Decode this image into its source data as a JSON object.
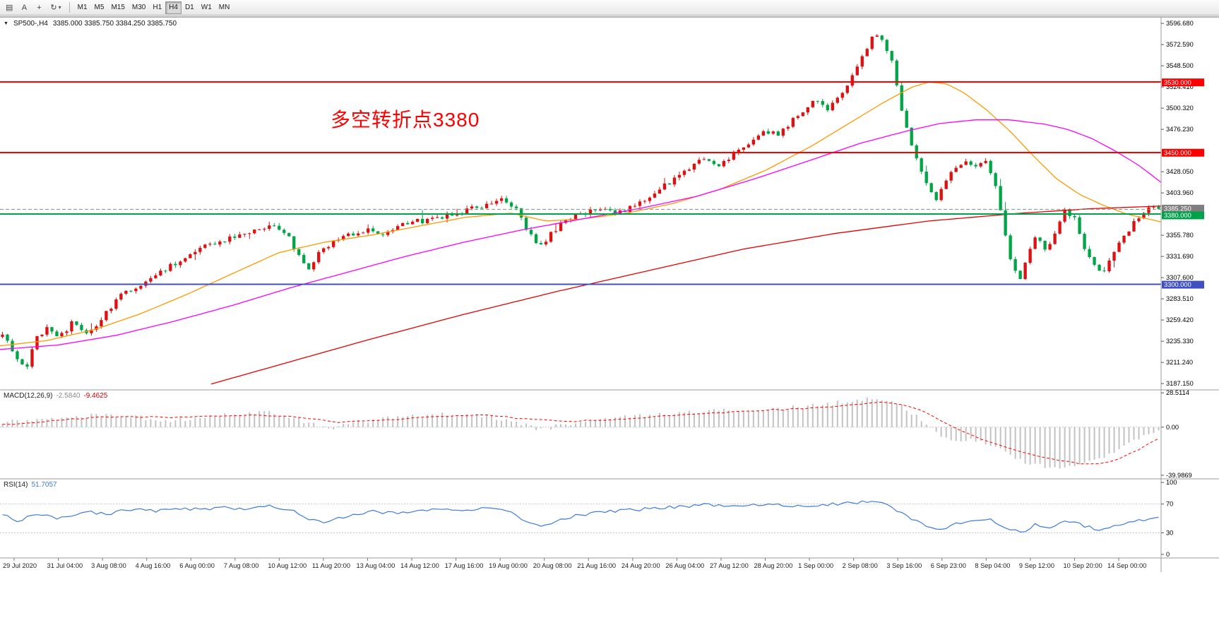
{
  "seed": 7,
  "toolbar": {
    "icon_buttons": [
      {
        "name": "chart-window-icon",
        "glyph": "▤"
      },
      {
        "name": "text-annotation",
        "glyph": "A"
      },
      {
        "name": "crosshair-tool",
        "glyph": "+"
      },
      {
        "name": "auto-scroll",
        "glyph": "↻"
      },
      {
        "name": "dropdown-caret",
        "glyph": "▾"
      }
    ],
    "timeframes": [
      "M1",
      "M5",
      "M15",
      "M30",
      "H1",
      "H4",
      "D1",
      "W1",
      "MN"
    ],
    "active_timeframe": "H4"
  },
  "symbol_bar": {
    "marker": "▼",
    "symbol": "SP500-,H4",
    "ohlc": "3385.000 3385.750 3384.250 3385.750"
  },
  "annotation": {
    "text": "多空转折点3380",
    "color": "#ff0000"
  },
  "indicators": {
    "macd": {
      "name": "MACD(12,26,9)",
      "value_main": "-2.5840",
      "value_signal": "-9.4625",
      "hist_color": "#c2c2c2",
      "signal_color": "#ff0000",
      "axis": [
        {
          "v": 28.5114,
          "label": "28.5114"
        },
        {
          "v": 0,
          "label": "0.00"
        },
        {
          "v": -39.9869,
          "label": "-39.9869"
        }
      ]
    },
    "rsi": {
      "name": "RSI(14)",
      "value": "51.7057",
      "color": "#3e7bd8",
      "levels": [
        {
          "v": 100,
          "label": "100",
          "dashed": false
        },
        {
          "v": 70,
          "label": "70",
          "dashed": true
        },
        {
          "v": 30,
          "label": "30",
          "dashed": true
        },
        {
          "v": 0,
          "label": "0",
          "dashed": false
        }
      ]
    }
  },
  "price_axis": {
    "decimals": 3,
    "ticks": [
      3596.68,
      3572.59,
      3548.5,
      3524.41,
      3500.32,
      3476.23,
      3428.05,
      3403.96,
      3355.78,
      3331.69,
      3307.6,
      3283.51,
      3259.42,
      3235.33,
      3211.24,
      3187.15
    ]
  },
  "hlines": [
    {
      "price": 3530.0,
      "label": "3530.000",
      "color": "#ff0000",
      "width": 2
    },
    {
      "price": 3450.0,
      "label": "3450.000",
      "color": "#ff0000",
      "width": 2
    },
    {
      "price": 3380.0,
      "label": "3380.000",
      "color": "#00a14b",
      "width": 2
    },
    {
      "price": 3300.0,
      "label": "3300.000",
      "color": "#3f51c1",
      "width": 2
    }
  ],
  "current_price": {
    "price": 3385.25,
    "label": "3385.250",
    "line_color": "#7d957d",
    "label_bg": "#7f7f7f"
  },
  "time_axis": [
    "29 Jul 2020",
    "31 Jul 04:00",
    "3 Aug 08:00",
    "4 Aug 16:00",
    "6 Aug 00:00",
    "7 Aug 08:00",
    "10 Aug 12:00",
    "11 Aug 20:00",
    "13 Aug 04:00",
    "14 Aug 12:00",
    "17 Aug 16:00",
    "19 Aug 00:00",
    "20 Aug 08:00",
    "21 Aug 16:00",
    "24 Aug 20:00",
    "26 Aug 04:00",
    "27 Aug 12:00",
    "28 Aug 20:00",
    "1 Sep 00:00",
    "2 Sep 08:00",
    "3 Sep 16:00",
    "6 Sep 23:00",
    "8 Sep 04:00",
    "9 Sep 12:00",
    "10 Sep 20:00",
    "14 Sep 00:00"
  ],
  "chart_data": [
    {
      "type": "candlestick",
      "title": "SP500 H4",
      "count": 235,
      "up_color": "#dd1111",
      "down_color": "#00a546",
      "ylim": [
        3180,
        3604
      ],
      "close_anchors": [
        [
          0.0,
          3246
        ],
        [
          0.006,
          3232
        ],
        [
          0.012,
          3218
        ],
        [
          0.02,
          3200
        ],
        [
          0.028,
          3236
        ],
        [
          0.038,
          3252
        ],
        [
          0.05,
          3240
        ],
        [
          0.06,
          3256
        ],
        [
          0.072,
          3244
        ],
        [
          0.085,
          3260
        ],
        [
          0.1,
          3284
        ],
        [
          0.115,
          3298
        ],
        [
          0.13,
          3308
        ],
        [
          0.145,
          3320
        ],
        [
          0.16,
          3330
        ],
        [
          0.175,
          3342
        ],
        [
          0.19,
          3350
        ],
        [
          0.205,
          3354
        ],
        [
          0.22,
          3360
        ],
        [
          0.235,
          3368
        ],
        [
          0.245,
          3360
        ],
        [
          0.255,
          3336
        ],
        [
          0.264,
          3316
        ],
        [
          0.274,
          3336
        ],
        [
          0.288,
          3350
        ],
        [
          0.302,
          3358
        ],
        [
          0.316,
          3362
        ],
        [
          0.33,
          3356
        ],
        [
          0.345,
          3366
        ],
        [
          0.36,
          3372
        ],
        [
          0.378,
          3376
        ],
        [
          0.394,
          3382
        ],
        [
          0.41,
          3388
        ],
        [
          0.424,
          3392
        ],
        [
          0.434,
          3396
        ],
        [
          0.444,
          3386
        ],
        [
          0.454,
          3360
        ],
        [
          0.464,
          3342
        ],
        [
          0.476,
          3360
        ],
        [
          0.49,
          3376
        ],
        [
          0.504,
          3382
        ],
        [
          0.518,
          3386
        ],
        [
          0.531,
          3378
        ],
        [
          0.544,
          3390
        ],
        [
          0.557,
          3398
        ],
        [
          0.571,
          3410
        ],
        [
          0.584,
          3424
        ],
        [
          0.597,
          3436
        ],
        [
          0.609,
          3444
        ],
        [
          0.621,
          3436
        ],
        [
          0.634,
          3450
        ],
        [
          0.647,
          3462
        ],
        [
          0.659,
          3476
        ],
        [
          0.671,
          3470
        ],
        [
          0.683,
          3486
        ],
        [
          0.694,
          3500
        ],
        [
          0.704,
          3508
        ],
        [
          0.714,
          3498
        ],
        [
          0.724,
          3512
        ],
        [
          0.734,
          3532
        ],
        [
          0.744,
          3558
        ],
        [
          0.754,
          3586
        ],
        [
          0.761,
          3576
        ],
        [
          0.769,
          3556
        ],
        [
          0.777,
          3498
        ],
        [
          0.785,
          3464
        ],
        [
          0.793,
          3436
        ],
        [
          0.801,
          3410
        ],
        [
          0.807,
          3396
        ],
        [
          0.814,
          3416
        ],
        [
          0.823,
          3428
        ],
        [
          0.832,
          3438
        ],
        [
          0.841,
          3432
        ],
        [
          0.849,
          3442
        ],
        [
          0.857,
          3420
        ],
        [
          0.865,
          3374
        ],
        [
          0.873,
          3322
        ],
        [
          0.88,
          3303
        ],
        [
          0.888,
          3340
        ],
        [
          0.895,
          3356
        ],
        [
          0.903,
          3336
        ],
        [
          0.911,
          3360
        ],
        [
          0.919,
          3384
        ],
        [
          0.927,
          3376
        ],
        [
          0.935,
          3344
        ],
        [
          0.943,
          3324
        ],
        [
          0.951,
          3312
        ],
        [
          0.959,
          3328
        ],
        [
          0.967,
          3350
        ],
        [
          0.975,
          3364
        ],
        [
          0.983,
          3378
        ],
        [
          0.991,
          3388
        ],
        [
          1.0,
          3385.75
        ]
      ]
    },
    {
      "type": "line",
      "name": "MA-fast",
      "color": "#ff9900",
      "anchors": [
        [
          0.0,
          3230
        ],
        [
          0.04,
          3236
        ],
        [
          0.08,
          3248
        ],
        [
          0.12,
          3266
        ],
        [
          0.16,
          3288
        ],
        [
          0.2,
          3312
        ],
        [
          0.24,
          3336
        ],
        [
          0.28,
          3348
        ],
        [
          0.32,
          3356
        ],
        [
          0.36,
          3366
        ],
        [
          0.4,
          3376
        ],
        [
          0.44,
          3381
        ],
        [
          0.47,
          3372
        ],
        [
          0.5,
          3374
        ],
        [
          0.54,
          3381
        ],
        [
          0.58,
          3392
        ],
        [
          0.62,
          3408
        ],
        [
          0.66,
          3430
        ],
        [
          0.7,
          3458
        ],
        [
          0.73,
          3482
        ],
        [
          0.76,
          3506
        ],
        [
          0.785,
          3524
        ],
        [
          0.8,
          3530
        ],
        [
          0.815,
          3528
        ],
        [
          0.83,
          3518
        ],
        [
          0.85,
          3498
        ],
        [
          0.87,
          3474
        ],
        [
          0.89,
          3446
        ],
        [
          0.91,
          3420
        ],
        [
          0.93,
          3402
        ],
        [
          0.95,
          3390
        ],
        [
          0.97,
          3380
        ],
        [
          1.0,
          3371
        ]
      ]
    },
    {
      "type": "line",
      "name": "MA-mid",
      "color": "#ff00ff",
      "anchors": [
        [
          0.0,
          3226
        ],
        [
          0.05,
          3231
        ],
        [
          0.1,
          3242
        ],
        [
          0.15,
          3258
        ],
        [
          0.2,
          3276
        ],
        [
          0.25,
          3296
        ],
        [
          0.3,
          3314
        ],
        [
          0.35,
          3332
        ],
        [
          0.4,
          3348
        ],
        [
          0.45,
          3362
        ],
        [
          0.5,
          3374
        ],
        [
          0.55,
          3386
        ],
        [
          0.6,
          3400
        ],
        [
          0.65,
          3420
        ],
        [
          0.7,
          3442
        ],
        [
          0.74,
          3460
        ],
        [
          0.78,
          3474
        ],
        [
          0.81,
          3483
        ],
        [
          0.84,
          3487
        ],
        [
          0.87,
          3487
        ],
        [
          0.9,
          3482
        ],
        [
          0.92,
          3476
        ],
        [
          0.94,
          3466
        ],
        [
          0.96,
          3452
        ],
        [
          0.98,
          3436
        ],
        [
          1.0,
          3416
        ]
      ]
    },
    {
      "type": "line",
      "name": "MA-slow",
      "color": "#e60000",
      "anchors": [
        [
          0.18,
          3186
        ],
        [
          0.25,
          3212
        ],
        [
          0.32,
          3238
        ],
        [
          0.4,
          3266
        ],
        [
          0.48,
          3292
        ],
        [
          0.56,
          3316
        ],
        [
          0.64,
          3340
        ],
        [
          0.72,
          3358
        ],
        [
          0.8,
          3372
        ],
        [
          0.88,
          3381
        ],
        [
          0.94,
          3386
        ],
        [
          1.0,
          3389
        ]
      ]
    },
    {
      "type": "bar",
      "name": "MACD histogram",
      "ylim": [
        -43,
        31
      ],
      "anchors": [
        [
          0.0,
          4
        ],
        [
          0.03,
          6
        ],
        [
          0.06,
          9
        ],
        [
          0.09,
          10
        ],
        [
          0.12,
          8
        ],
        [
          0.14,
          5
        ],
        [
          0.17,
          8
        ],
        [
          0.2,
          11
        ],
        [
          0.23,
          12
        ],
        [
          0.25,
          8
        ],
        [
          0.27,
          2
        ],
        [
          0.285,
          -1
        ],
        [
          0.3,
          3
        ],
        [
          0.33,
          7
        ],
        [
          0.36,
          9
        ],
        [
          0.39,
          11
        ],
        [
          0.42,
          9
        ],
        [
          0.445,
          4
        ],
        [
          0.465,
          -2
        ],
        [
          0.48,
          1
        ],
        [
          0.5,
          5
        ],
        [
          0.53,
          8
        ],
        [
          0.56,
          10
        ],
        [
          0.59,
          12
        ],
        [
          0.62,
          14
        ],
        [
          0.65,
          13
        ],
        [
          0.67,
          15
        ],
        [
          0.7,
          18
        ],
        [
          0.72,
          20
        ],
        [
          0.74,
          23
        ],
        [
          0.755,
          25
        ],
        [
          0.77,
          21
        ],
        [
          0.785,
          13
        ],
        [
          0.8,
          3
        ],
        [
          0.81,
          -6
        ],
        [
          0.825,
          -13
        ],
        [
          0.84,
          -11
        ],
        [
          0.855,
          -14
        ],
        [
          0.87,
          -22
        ],
        [
          0.885,
          -29
        ],
        [
          0.9,
          -33
        ],
        [
          0.915,
          -35
        ],
        [
          0.93,
          -31
        ],
        [
          0.945,
          -27
        ],
        [
          0.96,
          -21
        ],
        [
          0.975,
          -13
        ],
        [
          0.99,
          -6
        ],
        [
          1.0,
          -2.584
        ]
      ]
    },
    {
      "type": "line",
      "name": "MACD signal",
      "color": "#ff0000",
      "anchors": [
        [
          0.0,
          2
        ],
        [
          0.05,
          6
        ],
        [
          0.1,
          9
        ],
        [
          0.14,
          8
        ],
        [
          0.18,
          9
        ],
        [
          0.22,
          10
        ],
        [
          0.26,
          8
        ],
        [
          0.29,
          4
        ],
        [
          0.33,
          6
        ],
        [
          0.38,
          9
        ],
        [
          0.42,
          10
        ],
        [
          0.46,
          6
        ],
        [
          0.5,
          5
        ],
        [
          0.54,
          7
        ],
        [
          0.58,
          10
        ],
        [
          0.62,
          12
        ],
        [
          0.66,
          14
        ],
        [
          0.7,
          16
        ],
        [
          0.74,
          19
        ],
        [
          0.765,
          21
        ],
        [
          0.79,
          16
        ],
        [
          0.81,
          6
        ],
        [
          0.83,
          -4
        ],
        [
          0.85,
          -11
        ],
        [
          0.87,
          -17
        ],
        [
          0.89,
          -23
        ],
        [
          0.91,
          -27
        ],
        [
          0.93,
          -30
        ],
        [
          0.95,
          -31
        ],
        [
          0.965,
          -27
        ],
        [
          0.98,
          -20
        ],
        [
          0.99,
          -14
        ],
        [
          1.0,
          -9.4625
        ]
      ]
    },
    {
      "type": "line",
      "name": "RSI(14)",
      "color": "#3e7bd8",
      "ylim": [
        0,
        100
      ],
      "anchors": [
        [
          0.0,
          55
        ],
        [
          0.015,
          46
        ],
        [
          0.03,
          57
        ],
        [
          0.05,
          50
        ],
        [
          0.07,
          60
        ],
        [
          0.09,
          56
        ],
        [
          0.11,
          63
        ],
        [
          0.13,
          60
        ],
        [
          0.15,
          65
        ],
        [
          0.17,
          62
        ],
        [
          0.19,
          66
        ],
        [
          0.21,
          63
        ],
        [
          0.23,
          68
        ],
        [
          0.25,
          62
        ],
        [
          0.265,
          50
        ],
        [
          0.28,
          44
        ],
        [
          0.3,
          55
        ],
        [
          0.32,
          60
        ],
        [
          0.34,
          57
        ],
        [
          0.36,
          61
        ],
        [
          0.38,
          64
        ],
        [
          0.4,
          62
        ],
        [
          0.42,
          66
        ],
        [
          0.44,
          58
        ],
        [
          0.455,
          44
        ],
        [
          0.47,
          40
        ],
        [
          0.49,
          52
        ],
        [
          0.51,
          57
        ],
        [
          0.53,
          60
        ],
        [
          0.55,
          62
        ],
        [
          0.57,
          65
        ],
        [
          0.59,
          67
        ],
        [
          0.61,
          69
        ],
        [
          0.63,
          66
        ],
        [
          0.65,
          68
        ],
        [
          0.67,
          70
        ],
        [
          0.69,
          67
        ],
        [
          0.71,
          69
        ],
        [
          0.73,
          71
        ],
        [
          0.75,
          74
        ],
        [
          0.765,
          69
        ],
        [
          0.78,
          55
        ],
        [
          0.795,
          42
        ],
        [
          0.81,
          33
        ],
        [
          0.825,
          44
        ],
        [
          0.84,
          47
        ],
        [
          0.855,
          49
        ],
        [
          0.868,
          38
        ],
        [
          0.881,
          29
        ],
        [
          0.893,
          41
        ],
        [
          0.905,
          37
        ],
        [
          0.92,
          47
        ],
        [
          0.935,
          40
        ],
        [
          0.95,
          34
        ],
        [
          0.965,
          42
        ],
        [
          0.98,
          47
        ],
        [
          1.0,
          51.7
        ]
      ]
    }
  ]
}
